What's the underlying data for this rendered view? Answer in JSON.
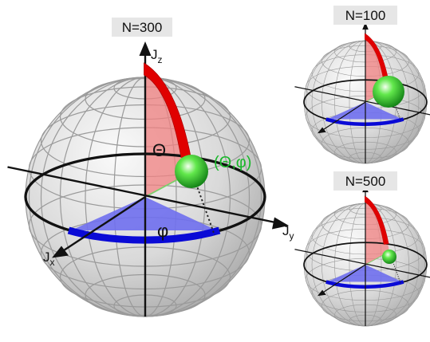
{
  "panels": [
    {
      "label": "N=300"
    },
    {
      "label": "N=100"
    },
    {
      "label": "N=500"
    }
  ],
  "axes": {
    "z": {
      "main": "J",
      "sub": "z"
    },
    "y": {
      "main": "J",
      "sub": "y"
    },
    "x": {
      "main": "J",
      "sub": "x"
    }
  },
  "angles": {
    "theta": "Θ",
    "phi": "φ",
    "point": "(Θ,φ)"
  }
}
